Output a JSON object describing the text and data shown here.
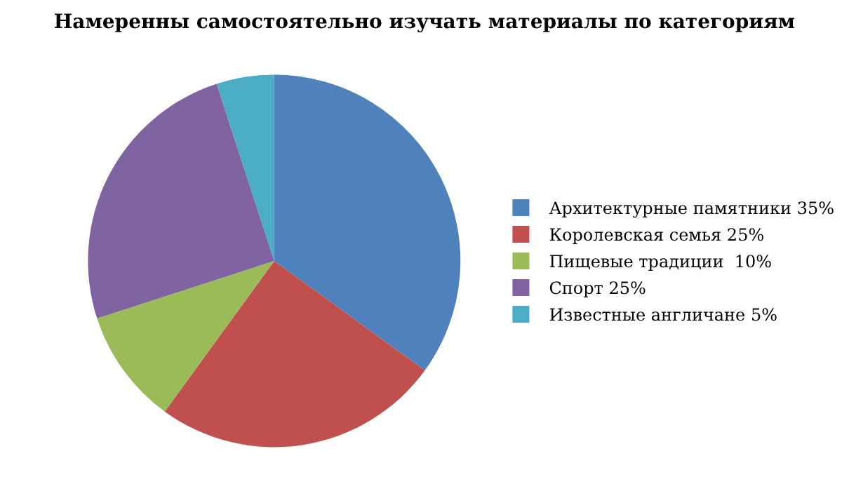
{
  "chart_data": {
    "type": "pie",
    "title": "Намеренны самостоятельно изучать материалы по категориям",
    "categories": [
      "Архитектурные памятники 35%",
      "Королевская семья 25%",
      "Пищевые традиции  10%",
      "Спорт 25%",
      "Известные англичане 5%"
    ],
    "values": [
      35,
      25,
      10,
      25,
      5
    ],
    "colors": [
      "#4f81bd",
      "#c0504d",
      "#9bbb59",
      "#8064a2",
      "#4bacc6"
    ],
    "legend": "right"
  }
}
